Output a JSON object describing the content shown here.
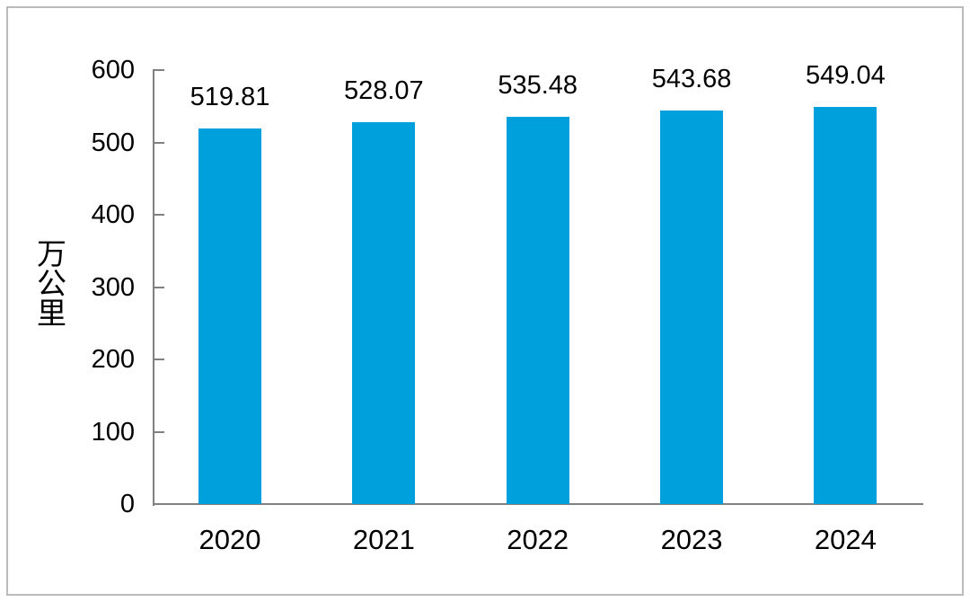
{
  "chart_data": {
    "type": "bar",
    "categories": [
      "2020",
      "2021",
      "2022",
      "2023",
      "2024"
    ],
    "values": [
      519.81,
      528.07,
      535.48,
      543.68,
      549.04
    ],
    "value_labels": [
      "519.81",
      "528.07",
      "535.48",
      "543.68",
      "549.04"
    ],
    "title": "",
    "xlabel": "",
    "ylabel": "万公里",
    "ylim": [
      0,
      600
    ],
    "yticks": [
      0,
      100,
      200,
      300,
      400,
      500,
      600
    ],
    "grid": false,
    "legend": "none",
    "bar_color": "#00a0dc",
    "axis_color": "#808080",
    "frame_border_color": "#bbbbbb",
    "text_color": "#000000"
  }
}
